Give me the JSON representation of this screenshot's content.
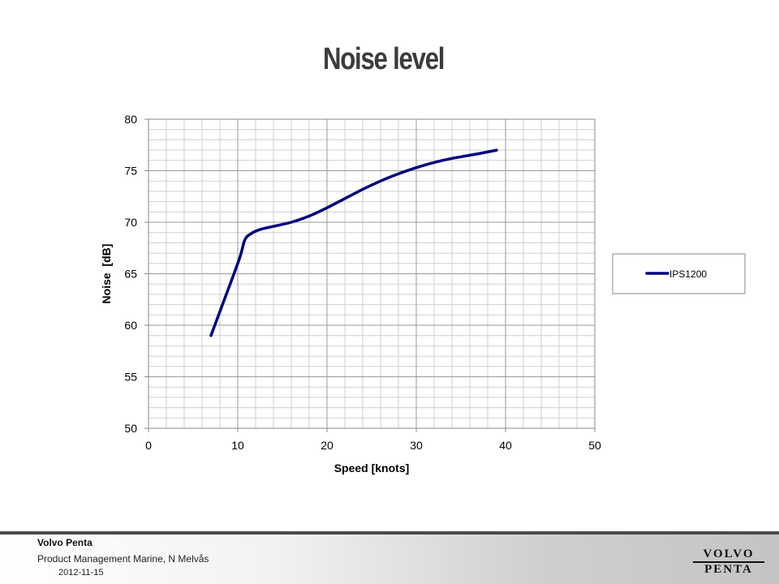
{
  "slide": {
    "title": "Noise level"
  },
  "footer": {
    "company": "Volvo Penta",
    "department": "Product Management Marine, N Melvås",
    "date": "2012-11-15"
  },
  "logo": {
    "line1": "VOLVO",
    "line2": "PENTA"
  },
  "chart_data": {
    "type": "line",
    "xlabel": "Speed [knots]",
    "ylabel": "Noise  [dB]",
    "xlim": [
      0,
      50
    ],
    "ylim": [
      50,
      80
    ],
    "xticks": [
      0,
      10,
      20,
      30,
      40,
      50
    ],
    "yticks": [
      50,
      55,
      60,
      65,
      70,
      75,
      80
    ],
    "x_minor_step": 2,
    "y_minor_step": 1,
    "grid": true,
    "legend_position": "right",
    "series": [
      {
        "name": "IPS1200",
        "color": "#000080",
        "x": [
          7,
          8.5,
          10.2,
          10.8,
          11.5,
          12.5,
          14,
          16,
          18,
          20,
          22,
          24,
          26,
          28,
          30,
          32,
          34,
          36,
          39
        ],
        "y": [
          59,
          62.5,
          66.5,
          68.3,
          68.9,
          69.3,
          69.6,
          70.0,
          70.6,
          71.4,
          72.3,
          73.2,
          74.0,
          74.7,
          75.3,
          75.8,
          76.2,
          76.5,
          77.0
        ]
      }
    ]
  }
}
